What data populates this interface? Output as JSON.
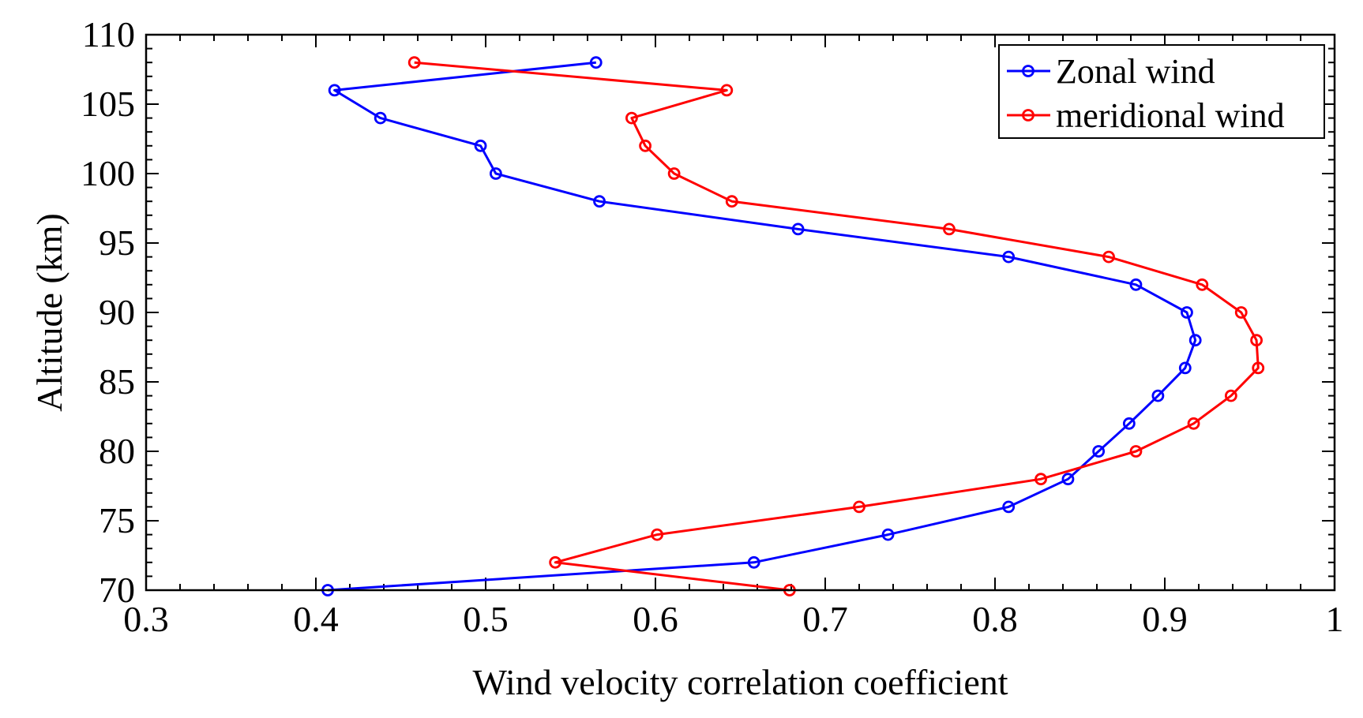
{
  "chart_data": {
    "type": "line",
    "title": "",
    "xlabel": "Wind velocity correlation coefficient",
    "ylabel": "Altitude (km)",
    "xlim": [
      0.3,
      1.0
    ],
    "ylim": [
      70,
      110
    ],
    "xticks": [
      0.3,
      0.4,
      0.5,
      0.6,
      0.7,
      0.8,
      0.9,
      1.0
    ],
    "xtick_labels": [
      "0.3",
      "0.4",
      "0.5",
      "0.6",
      "0.7",
      "0.8",
      "0.9",
      "1"
    ],
    "yticks": [
      70,
      75,
      80,
      85,
      90,
      95,
      100,
      105,
      110
    ],
    "ytick_labels": [
      "70",
      "75",
      "80",
      "85",
      "90",
      "95",
      "100",
      "105",
      "110"
    ],
    "grid": false,
    "legend_position": "top-right",
    "series": [
      {
        "name": "Zonal wind",
        "color": "#0000ff",
        "marker": "circle",
        "points": [
          {
            "x": 0.407,
            "y": 70
          },
          {
            "x": 0.658,
            "y": 72
          },
          {
            "x": 0.737,
            "y": 74
          },
          {
            "x": 0.808,
            "y": 76
          },
          {
            "x": 0.843,
            "y": 78
          },
          {
            "x": 0.861,
            "y": 80
          },
          {
            "x": 0.879,
            "y": 82
          },
          {
            "x": 0.896,
            "y": 84
          },
          {
            "x": 0.912,
            "y": 86
          },
          {
            "x": 0.918,
            "y": 88
          },
          {
            "x": 0.913,
            "y": 90
          },
          {
            "x": 0.883,
            "y": 92
          },
          {
            "x": 0.808,
            "y": 94
          },
          {
            "x": 0.684,
            "y": 96
          },
          {
            "x": 0.567,
            "y": 98
          },
          {
            "x": 0.506,
            "y": 100
          },
          {
            "x": 0.497,
            "y": 102
          },
          {
            "x": 0.438,
            "y": 104
          },
          {
            "x": 0.411,
            "y": 106
          },
          {
            "x": 0.565,
            "y": 108
          }
        ]
      },
      {
        "name": "meridional wind",
        "color": "#ff0000",
        "marker": "circle",
        "points": [
          {
            "x": 0.679,
            "y": 70
          },
          {
            "x": 0.541,
            "y": 72
          },
          {
            "x": 0.601,
            "y": 74
          },
          {
            "x": 0.72,
            "y": 76
          },
          {
            "x": 0.827,
            "y": 78
          },
          {
            "x": 0.883,
            "y": 80
          },
          {
            "x": 0.917,
            "y": 82
          },
          {
            "x": 0.939,
            "y": 84
          },
          {
            "x": 0.955,
            "y": 86
          },
          {
            "x": 0.954,
            "y": 88
          },
          {
            "x": 0.945,
            "y": 90
          },
          {
            "x": 0.922,
            "y": 92
          },
          {
            "x": 0.867,
            "y": 94
          },
          {
            "x": 0.773,
            "y": 96
          },
          {
            "x": 0.645,
            "y": 98
          },
          {
            "x": 0.611,
            "y": 100
          },
          {
            "x": 0.594,
            "y": 102
          },
          {
            "x": 0.586,
            "y": 104
          },
          {
            "x": 0.642,
            "y": 106
          },
          {
            "x": 0.458,
            "y": 108
          }
        ]
      }
    ]
  }
}
